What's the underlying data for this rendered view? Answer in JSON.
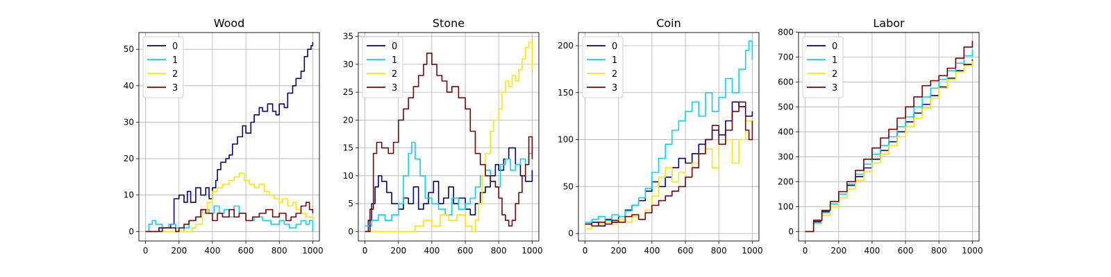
{
  "chart_data": [
    {
      "type": "line",
      "title": "Wood",
      "xlabel": "",
      "ylabel": "",
      "xlim": [
        -40,
        1040
      ],
      "ylim": [
        -2.6,
        54.6
      ],
      "xticks": [
        0,
        200,
        400,
        600,
        800,
        1000
      ],
      "yticks": [
        0,
        10,
        20,
        30,
        40,
        50
      ],
      "grid": true,
      "legend": "upper left",
      "series": [
        {
          "name": "0",
          "color": "#00007f",
          "x": [
            0,
            80,
            150,
            170,
            200,
            230,
            250,
            270,
            300,
            330,
            360,
            380,
            400,
            420,
            430,
            450,
            480,
            500,
            520,
            550,
            580,
            600,
            630,
            650,
            680,
            700,
            730,
            760,
            780,
            800,
            830,
            850,
            880,
            900,
            930,
            950,
            970,
            990,
            1000
          ],
          "y": [
            0,
            1,
            2,
            9,
            10,
            8,
            11,
            8,
            12,
            10,
            12,
            9,
            12,
            14,
            17,
            19,
            20,
            21,
            24,
            26,
            29,
            27,
            30,
            32,
            34,
            33,
            35,
            33,
            32,
            35,
            34,
            38,
            40,
            42,
            44,
            48,
            50,
            51,
            52
          ]
        },
        {
          "name": "1",
          "color": "#00d4ff",
          "x": [
            0,
            20,
            40,
            60,
            100,
            140,
            180,
            200,
            230,
            260,
            300,
            340,
            380,
            410,
            440,
            470,
            500,
            530,
            560,
            600,
            650,
            700,
            750,
            800,
            830,
            860,
            900,
            930,
            960,
            980,
            1000
          ],
          "y": [
            0,
            2,
            3,
            2,
            1,
            2,
            1,
            0,
            1,
            3,
            4,
            6,
            5,
            7,
            5,
            6,
            4,
            7,
            5,
            3,
            4,
            3,
            2,
            3,
            2,
            1,
            2,
            3,
            2,
            3,
            0
          ]
        },
        {
          "name": "2",
          "color": "#ffe600",
          "x": [
            0,
            150,
            280,
            300,
            340,
            370,
            400,
            430,
            460,
            500,
            530,
            560,
            590,
            620,
            650,
            680,
            710,
            740,
            770,
            800,
            820,
            850,
            880,
            900,
            930,
            960,
            1000
          ],
          "y": [
            0,
            0,
            1,
            2,
            5,
            8,
            11,
            12,
            13,
            14,
            15,
            16,
            14,
            13,
            12,
            13,
            11,
            10,
            9,
            8,
            9,
            7,
            8,
            6,
            5,
            4,
            3
          ]
        },
        {
          "name": "3",
          "color": "#7f0000",
          "x": [
            0,
            100,
            180,
            200,
            230,
            260,
            300,
            330,
            360,
            400,
            430,
            460,
            500,
            530,
            560,
            600,
            640,
            680,
            720,
            760,
            800,
            840,
            870,
            900,
            930,
            960,
            980,
            1000
          ],
          "y": [
            0,
            1,
            0,
            1,
            2,
            3,
            4,
            6,
            5,
            3,
            5,
            4,
            6,
            4,
            5,
            3,
            4,
            5,
            6,
            4,
            5,
            3,
            4,
            5,
            7,
            8,
            6,
            5
          ]
        }
      ]
    },
    {
      "type": "line",
      "title": "Stone",
      "xlabel": "",
      "ylabel": "",
      "xlim": [
        -40,
        1040
      ],
      "ylim": [
        -1.7,
        35.7
      ],
      "xticks": [
        0,
        200,
        400,
        600,
        800,
        1000
      ],
      "yticks": [
        0,
        5,
        10,
        15,
        20,
        25,
        30,
        35
      ],
      "grid": true,
      "legend": "upper left",
      "series": [
        {
          "name": "0",
          "color": "#00007f",
          "x": [
            0,
            20,
            40,
            60,
            80,
            100,
            130,
            160,
            200,
            230,
            260,
            290,
            320,
            350,
            380,
            410,
            440,
            470,
            500,
            530,
            560,
            600,
            630,
            660,
            690,
            720,
            750,
            780,
            800,
            830,
            860,
            900,
            930,
            960,
            1000
          ],
          "y": [
            0,
            2,
            5,
            8,
            10,
            9,
            7,
            5,
            4,
            6,
            5,
            8,
            4,
            5,
            7,
            9,
            5,
            6,
            8,
            5,
            6,
            4,
            3,
            5,
            7,
            8,
            10,
            12,
            11,
            13,
            15,
            12,
            10,
            9,
            11
          ]
        },
        {
          "name": "1",
          "color": "#00d4ff",
          "x": [
            0,
            40,
            80,
            120,
            160,
            200,
            230,
            260,
            280,
            300,
            330,
            360,
            400,
            440,
            480,
            520,
            560,
            600,
            630,
            660,
            690,
            720,
            750,
            780,
            810,
            840,
            870,
            900,
            930,
            960,
            980,
            1000
          ],
          "y": [
            1,
            2,
            3,
            2,
            3,
            5,
            10,
            14,
            16,
            13,
            10,
            6,
            5,
            4,
            3,
            6,
            4,
            5,
            6,
            8,
            10,
            11,
            9,
            8,
            12,
            13,
            11,
            12,
            13,
            12,
            14,
            15
          ]
        },
        {
          "name": "2",
          "color": "#ffe600",
          "x": [
            0,
            150,
            300,
            350,
            400,
            450,
            500,
            550,
            600,
            640,
            660,
            680,
            700,
            720,
            750,
            770,
            800,
            820,
            840,
            860,
            880,
            900,
            920,
            940,
            960,
            980,
            1000
          ],
          "y": [
            0,
            0,
            1,
            2,
            1,
            3,
            2,
            3,
            1,
            0,
            2,
            5,
            10,
            14,
            18,
            20,
            22,
            25,
            27,
            26,
            28,
            27,
            29,
            31,
            33,
            34,
            29
          ]
        },
        {
          "name": "3",
          "color": "#7f0000",
          "x": [
            0,
            30,
            50,
            70,
            100,
            140,
            170,
            200,
            230,
            260,
            290,
            320,
            350,
            370,
            400,
            430,
            460,
            490,
            520,
            560,
            600,
            630,
            660,
            690,
            720,
            750,
            780,
            800,
            820,
            840,
            860,
            880,
            900,
            920,
            940,
            960,
            980,
            1000
          ],
          "y": [
            0,
            4,
            14,
            16,
            15,
            14,
            16,
            20,
            22,
            24,
            26,
            28,
            30,
            32,
            30,
            28,
            27,
            25,
            26,
            24,
            22,
            18,
            14,
            12,
            10,
            9,
            8,
            6,
            3,
            2,
            1,
            2,
            5,
            7,
            10,
            12,
            17,
            13
          ]
        }
      ]
    },
    {
      "type": "line",
      "title": "Coin",
      "xlabel": "",
      "ylabel": "",
      "xlim": [
        -40,
        1040
      ],
      "ylim": [
        -8,
        214
      ],
      "xticks": [
        0,
        200,
        400,
        600,
        800,
        1000
      ],
      "yticks": [
        0,
        50,
        100,
        150,
        200
      ],
      "grid": true,
      "legend": "upper left",
      "series": [
        {
          "name": "0",
          "color": "#00007f",
          "x": [
            0,
            40,
            80,
            120,
            160,
            200,
            240,
            280,
            320,
            360,
            400,
            440,
            480,
            520,
            560,
            600,
            640,
            680,
            720,
            760,
            800,
            840,
            880,
            920,
            960,
            1000
          ],
          "y": [
            10,
            12,
            8,
            15,
            12,
            18,
            25,
            30,
            35,
            45,
            55,
            50,
            60,
            70,
            80,
            75,
            85,
            95,
            100,
            110,
            105,
            120,
            140,
            135,
            125,
            130
          ]
        },
        {
          "name": "1",
          "color": "#00d4ff",
          "x": [
            0,
            40,
            80,
            120,
            160,
            200,
            240,
            280,
            320,
            360,
            400,
            440,
            480,
            520,
            560,
            600,
            640,
            680,
            720,
            760,
            800,
            840,
            880,
            920,
            960,
            980,
            1000
          ],
          "y": [
            12,
            15,
            18,
            14,
            20,
            18,
            24,
            30,
            38,
            48,
            65,
            80,
            95,
            110,
            120,
            130,
            140,
            125,
            150,
            130,
            145,
            165,
            150,
            175,
            195,
            205,
            185
          ]
        },
        {
          "name": "2",
          "color": "#ffe600",
          "x": [
            0,
            40,
            80,
            120,
            160,
            200,
            240,
            280,
            320,
            360,
            400,
            440,
            480,
            520,
            560,
            600,
            640,
            680,
            720,
            760,
            800,
            840,
            880,
            920,
            960,
            1000
          ],
          "y": [
            5,
            8,
            10,
            12,
            10,
            15,
            12,
            18,
            15,
            25,
            40,
            60,
            70,
            55,
            65,
            60,
            75,
            85,
            90,
            70,
            95,
            100,
            75,
            100,
            120,
            115
          ]
        },
        {
          "name": "3",
          "color": "#7f0000",
          "x": [
            0,
            40,
            80,
            120,
            160,
            200,
            240,
            280,
            320,
            360,
            400,
            440,
            480,
            520,
            560,
            600,
            640,
            680,
            720,
            760,
            800,
            840,
            880,
            920,
            960,
            980,
            1000
          ],
          "y": [
            10,
            8,
            12,
            10,
            14,
            12,
            18,
            20,
            15,
            22,
            30,
            35,
            40,
            45,
            50,
            60,
            70,
            85,
            100,
            115,
            95,
            110,
            130,
            140,
            110,
            100,
            120
          ]
        }
      ]
    },
    {
      "type": "line",
      "title": "Labor",
      "xlabel": "",
      "ylabel": "",
      "xlim": [
        -40,
        1040
      ],
      "ylim": [
        -38,
        798
      ],
      "xticks": [
        0,
        200,
        400,
        600,
        800,
        1000
      ],
      "yticks": [
        0,
        100,
        200,
        300,
        400,
        500,
        600,
        700,
        800
      ],
      "grid": true,
      "legend": "upper left",
      "series": [
        {
          "name": "0",
          "color": "#00007f",
          "x": [
            0,
            50,
            100,
            150,
            200,
            250,
            300,
            350,
            400,
            450,
            500,
            550,
            600,
            650,
            700,
            750,
            800,
            850,
            900,
            950,
            1000
          ],
          "y": [
            0,
            40,
            80,
            110,
            150,
            185,
            220,
            255,
            290,
            325,
            360,
            400,
            440,
            475,
            510,
            545,
            580,
            615,
            645,
            670,
            690
          ]
        },
        {
          "name": "1",
          "color": "#00d4ff",
          "x": [
            0,
            50,
            100,
            150,
            200,
            250,
            300,
            350,
            400,
            450,
            500,
            550,
            600,
            650,
            700,
            750,
            800,
            850,
            900,
            950,
            1000
          ],
          "y": [
            0,
            35,
            75,
            110,
            150,
            190,
            230,
            270,
            310,
            345,
            380,
            420,
            460,
            500,
            540,
            575,
            610,
            645,
            675,
            705,
            730
          ]
        },
        {
          "name": "2",
          "color": "#ffe600",
          "x": [
            0,
            50,
            100,
            150,
            200,
            250,
            300,
            350,
            400,
            450,
            500,
            550,
            600,
            650,
            700,
            750,
            800,
            850,
            900,
            950,
            1000
          ],
          "y": [
            0,
            30,
            65,
            100,
            135,
            170,
            205,
            240,
            275,
            310,
            345,
            380,
            420,
            455,
            495,
            535,
            575,
            610,
            640,
            665,
            685
          ]
        },
        {
          "name": "3",
          "color": "#7f0000",
          "x": [
            0,
            50,
            100,
            150,
            200,
            250,
            300,
            350,
            400,
            450,
            500,
            550,
            600,
            650,
            700,
            750,
            800,
            850,
            900,
            950,
            1000
          ],
          "y": [
            0,
            45,
            85,
            120,
            160,
            200,
            245,
            290,
            335,
            375,
            410,
            455,
            500,
            540,
            585,
            605,
            625,
            655,
            695,
            740,
            765
          ]
        }
      ]
    }
  ]
}
